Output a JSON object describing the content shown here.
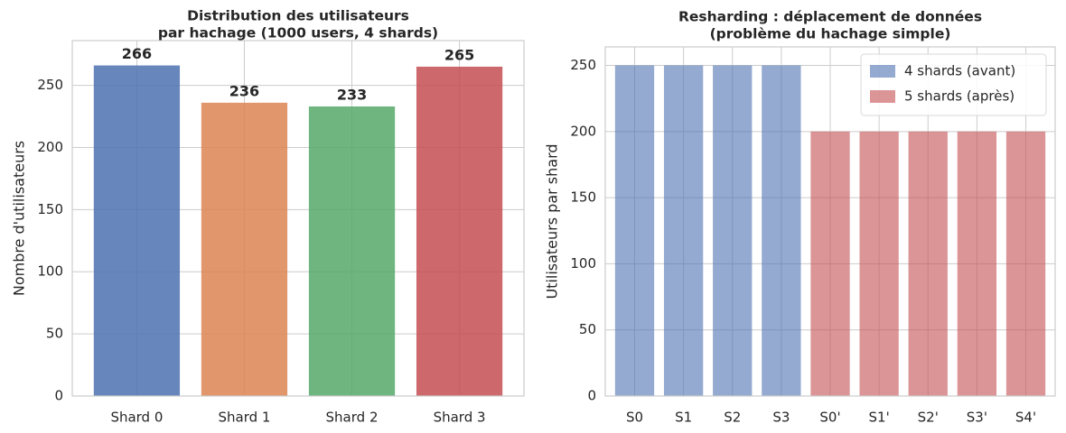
{
  "chart_data": [
    {
      "type": "bar",
      "title": [
        "Distribution des utilisateurs",
        "par hachage (1000 users, 4 shards)"
      ],
      "ylabel": "Nombre d'utilisateurs",
      "categories": [
        "Shard 0",
        "Shard 1",
        "Shard 2",
        "Shard 3"
      ],
      "values": [
        266,
        236,
        233,
        265
      ],
      "colors": [
        "#4c72b0",
        "#dd8452",
        "#55a868",
        "#c44e52"
      ],
      "ylim": [
        0,
        286
      ],
      "yticks": [
        0,
        50,
        100,
        150,
        200,
        250
      ],
      "grid": true,
      "value_labels_shown": true
    },
    {
      "type": "bar",
      "title": [
        "Resharding : déplacement de données",
        "(problème du hachage simple)"
      ],
      "ylabel": "Utilisateurs par shard",
      "categories": [
        "S0",
        "S1",
        "S2",
        "S3",
        "S0'",
        "S1'",
        "S2'",
        "S3'",
        "S4'"
      ],
      "series": [
        {
          "name": "4 shards (avant)",
          "color": "#4c72b0",
          "values": [
            250,
            250,
            250,
            250,
            null,
            null,
            null,
            null,
            null
          ]
        },
        {
          "name": "5 shards (après)",
          "color": "#c44e52",
          "values": [
            null,
            null,
            null,
            null,
            200,
            200,
            200,
            200,
            200
          ]
        }
      ],
      "ylim": [
        0,
        264
      ],
      "yticks": [
        0,
        50,
        100,
        150,
        200,
        250
      ],
      "grid": true,
      "legend": "upper right"
    }
  ]
}
